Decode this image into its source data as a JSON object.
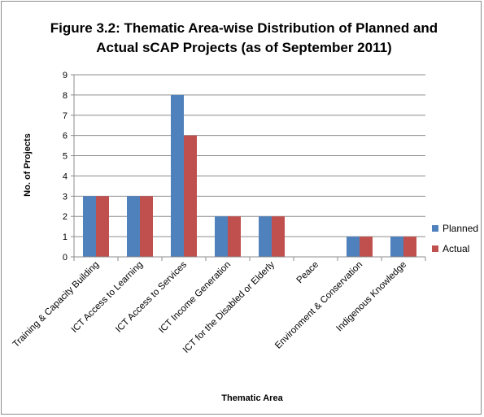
{
  "chart_data": {
    "type": "bar",
    "title": "Figure 3.2: Thematic Area-wise Distribution of Planned and Actual sCAP Projects (as of September 2011)",
    "title_lines": [
      "Figure 3.2: Thematic Area-wise Distribution of Planned and",
      "Actual sCAP Projects (as of September 2011)"
    ],
    "xlabel": "Thematic Area",
    "ylabel": "No. of Projects",
    "ylim": [
      0,
      9
    ],
    "yticks": [
      0,
      1,
      2,
      3,
      4,
      5,
      6,
      7,
      8,
      9
    ],
    "grid": true,
    "legend_position": "right",
    "categories": [
      "Training & Capacity Building",
      "ICT Access to Learning",
      "ICT Access to Services",
      "ICT Income Generation",
      "ICT for the Disabled or Elderly",
      "Peace",
      "Environment & Conservation",
      "Indigenous Knowledge"
    ],
    "series": [
      {
        "name": "Planned",
        "color": "#4f81bd",
        "values": [
          3,
          3,
          8,
          2,
          2,
          0,
          1,
          1
        ]
      },
      {
        "name": "Actual",
        "color": "#c0504d",
        "values": [
          3,
          3,
          6,
          2,
          2,
          0,
          1,
          1
        ]
      }
    ]
  }
}
